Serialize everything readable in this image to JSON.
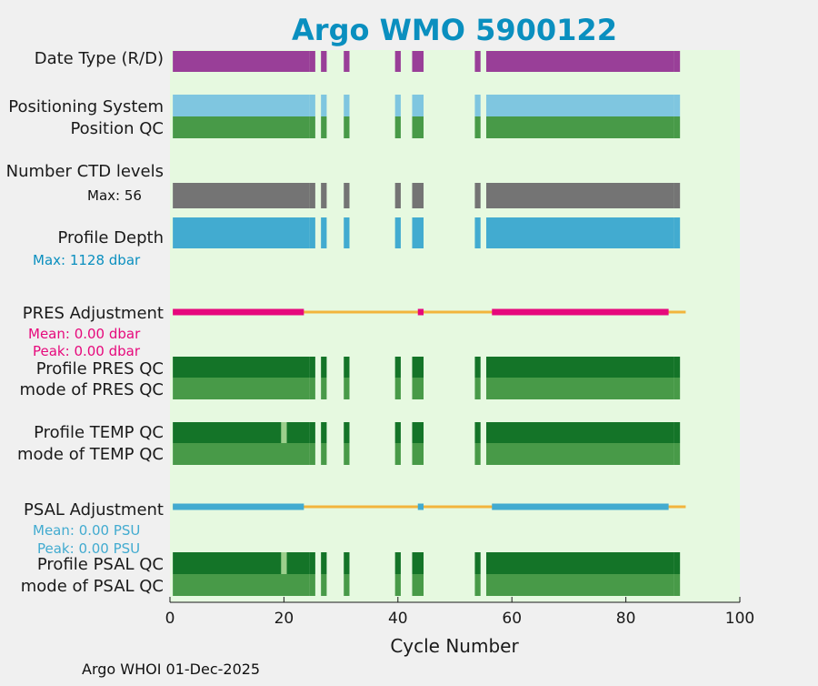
{
  "chart_data": {
    "type": "timeline",
    "title": "Argo WMO 5900122",
    "xlabel": "Cycle Number",
    "xlim": [
      0,
      100
    ],
    "xticks": [
      0,
      20,
      40,
      60,
      80,
      100
    ],
    "footer": "Argo WHOI 01-Dec-2025",
    "colors": {
      "title": "#0a8fbf",
      "plot_bg": "#e6f9e0",
      "date_type": "#993f98",
      "positioning": "#7fc6e0",
      "qc_good": "#489a48",
      "qc_profile": "#147428",
      "ctd": "#747474",
      "depth": "#42abd0",
      "pres_adj": "#e6097c",
      "psal_adj": "#42abd0",
      "adj_baseline": "#f2b53d",
      "qc_light": "#9ccf8c"
    },
    "cycle_groups": [
      {
        "start": 1,
        "end": 24
      },
      {
        "start": 25,
        "end": 25
      },
      {
        "start": 27,
        "end": 27
      },
      {
        "start": 31,
        "end": 31
      },
      {
        "start": 40,
        "end": 40
      },
      {
        "start": 43,
        "end": 44
      },
      {
        "start": 54,
        "end": 54
      },
      {
        "start": 56,
        "end": 88
      },
      {
        "start": 89,
        "end": 89
      }
    ],
    "adjustment_active_ranges": [
      {
        "start": 1,
        "end": 23
      },
      {
        "start": 44,
        "end": 44
      },
      {
        "start": 57,
        "end": 87
      }
    ],
    "adjustment_baseline_range": [
      1,
      90
    ],
    "rows": [
      {
        "key": "date_type",
        "label": "Date Type (R/D)",
        "annotation": ""
      },
      {
        "key": "positioning",
        "label": "Positioning System",
        "annotation": ""
      },
      {
        "key": "position_qc",
        "label": "Position QC",
        "annotation": ""
      },
      {
        "key": "ctd_levels",
        "label": "Number CTD levels",
        "annotation": "Max: 56"
      },
      {
        "key": "profile_depth",
        "label": "Profile Depth",
        "annotation": "Max: 1128 dbar"
      },
      {
        "key": "pres_adjustment",
        "label": "PRES Adjustment",
        "mean": "Mean: 0.00 dbar",
        "peak": "Peak: 0.00 dbar"
      },
      {
        "key": "profile_pres_qc",
        "label": "Profile PRES QC",
        "annotation": ""
      },
      {
        "key": "mode_pres_qc",
        "label": "mode of PRES QC",
        "annotation": ""
      },
      {
        "key": "profile_temp_qc",
        "label": "Profile TEMP QC",
        "annotation": ""
      },
      {
        "key": "mode_temp_qc",
        "label": "mode of TEMP QC",
        "annotation": ""
      },
      {
        "key": "psal_adjustment",
        "label": "PSAL Adjustment",
        "mean": "Mean: 0.00 PSU",
        "peak": "Peak: 0.00 PSU"
      },
      {
        "key": "profile_psal_qc",
        "label": "Profile PSAL QC",
        "annotation": ""
      },
      {
        "key": "mode_psal_qc",
        "label": "mode of PSAL QC",
        "annotation": ""
      }
    ],
    "ctd_levels_max": 56,
    "profile_depth_max_dbar": 1128,
    "qc_exceptions": [
      {
        "row": "profile_temp_qc",
        "cycle": 20,
        "state": "light"
      },
      {
        "row": "profile_psal_qc",
        "cycle": 20,
        "state": "light"
      }
    ]
  }
}
